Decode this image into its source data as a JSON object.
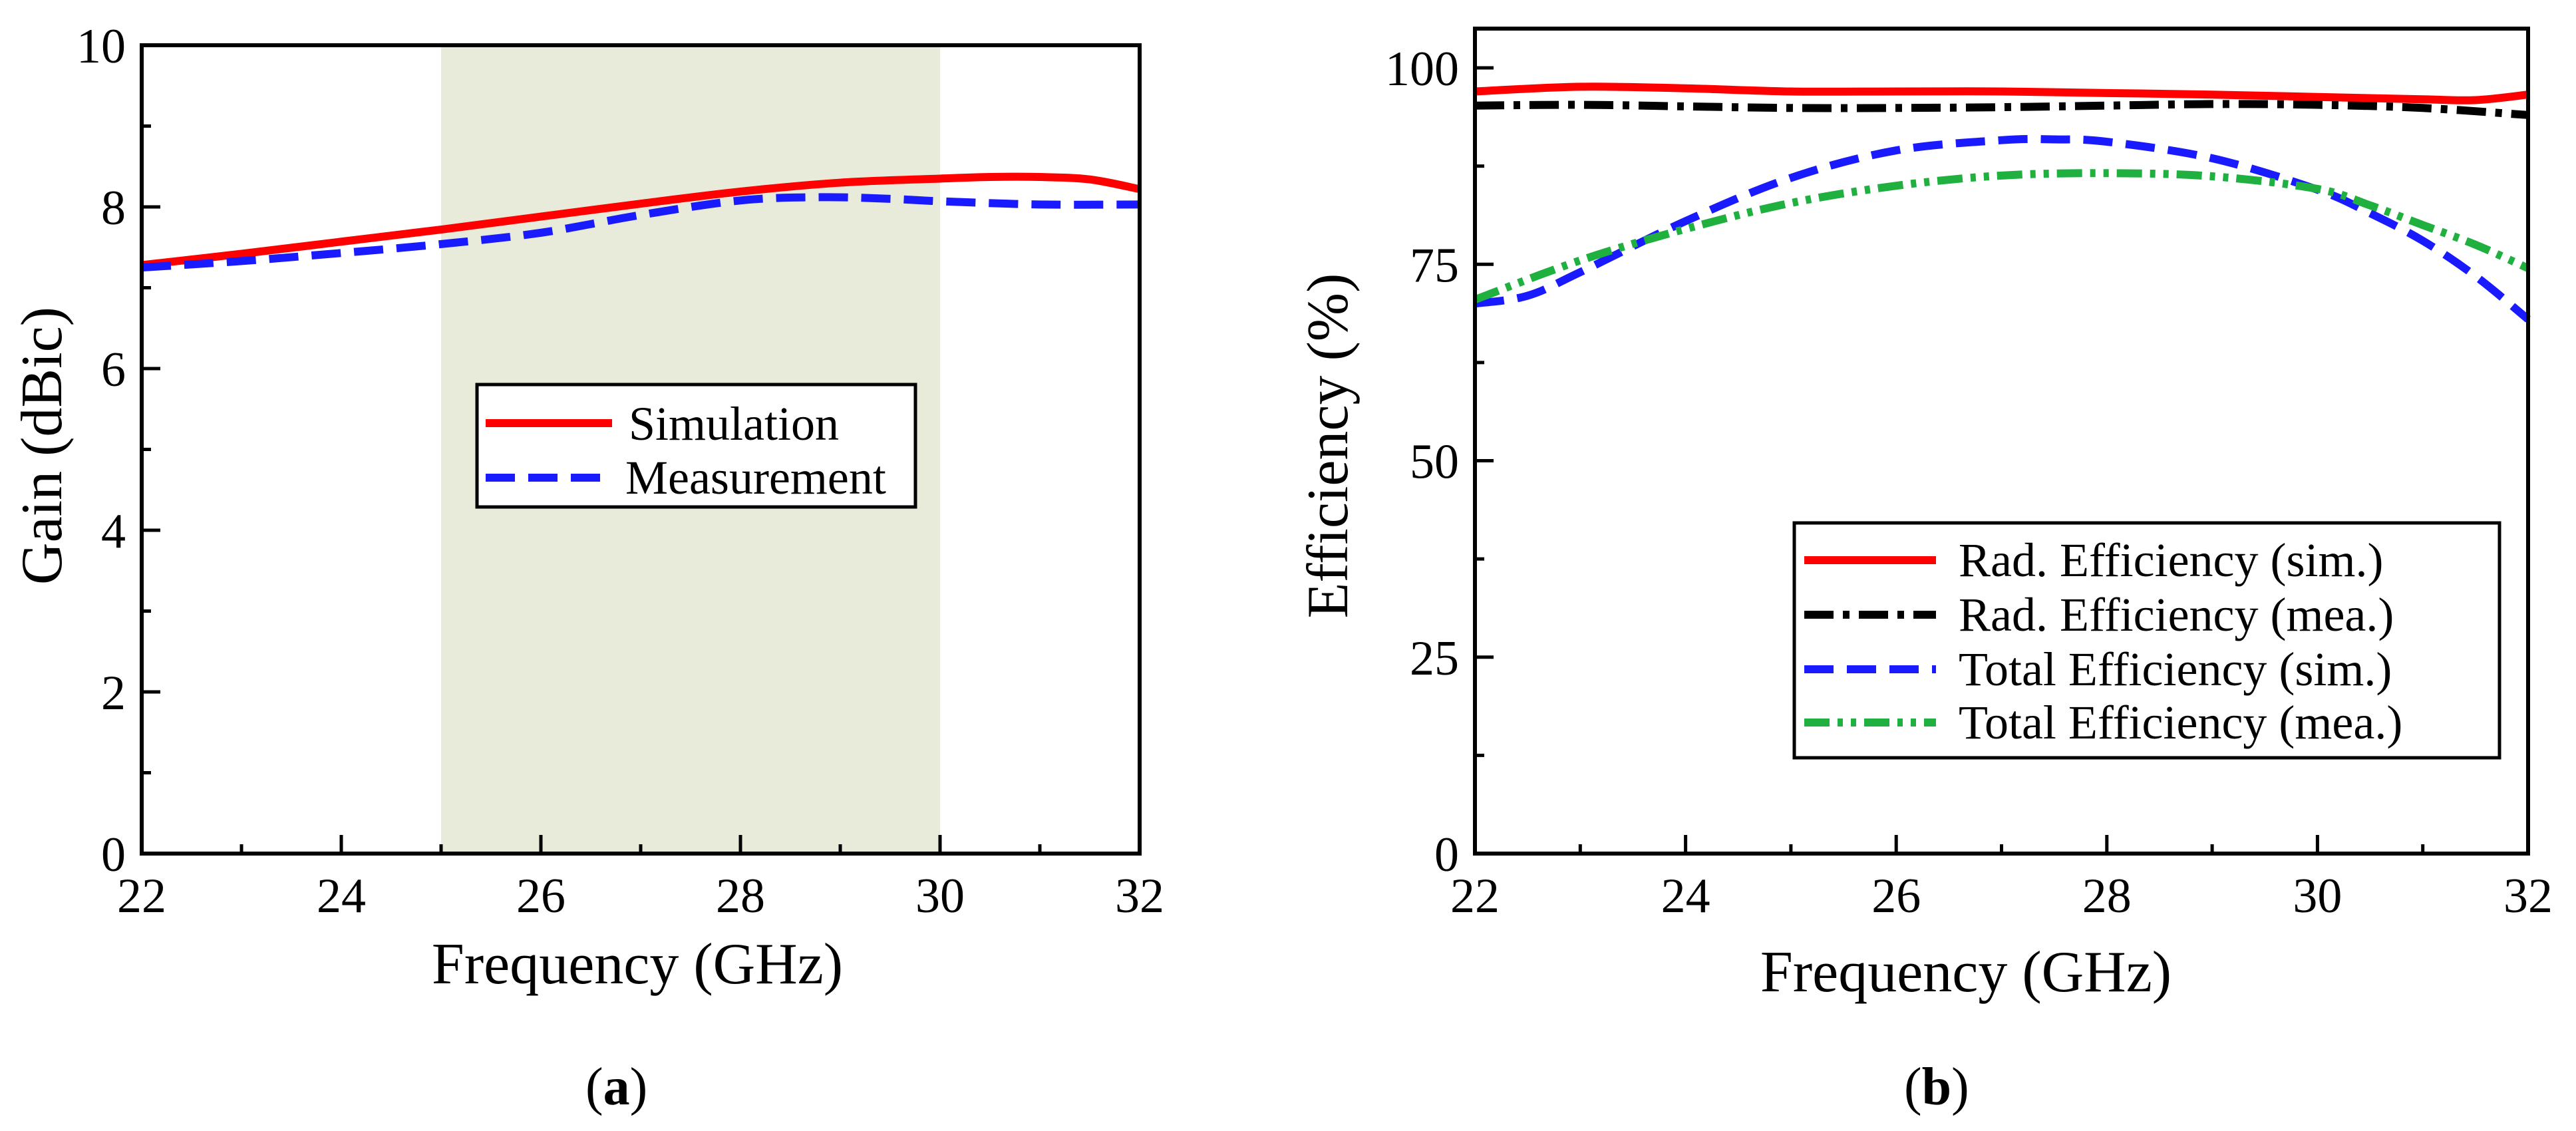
{
  "chart_data": [
    {
      "type": "line",
      "panel": "a",
      "caption_open": "(",
      "caption_letter": "a",
      "caption_close": ")",
      "xlabel": "Frequency (GHz)",
      "ylabel": "Gain (dBic)",
      "xlim": [
        22,
        32
      ],
      "ylim": [
        0,
        10
      ],
      "xticks": [
        22,
        24,
        26,
        28,
        30,
        32
      ],
      "yticks": [
        0,
        2,
        4,
        6,
        8,
        10
      ],
      "shaded_band": {
        "x_start": 25,
        "x_end": 30,
        "color": "#e8ebd9"
      },
      "legend_position": "center",
      "series": [
        {
          "name": "Simulation",
          "color": "#ff0000",
          "style": "solid",
          "x": [
            22,
            23,
            24,
            25,
            26,
            27,
            28,
            29,
            30,
            30.5,
            31,
            31.5,
            32
          ],
          "y": [
            7.28,
            7.42,
            7.57,
            7.72,
            7.88,
            8.04,
            8.19,
            8.3,
            8.35,
            8.37,
            8.37,
            8.34,
            8.22
          ]
        },
        {
          "name": "Measurement",
          "color": "#1a1aff",
          "style": "dashed",
          "x": [
            22,
            23,
            24,
            25,
            26,
            27,
            28,
            28.8,
            29.5,
            30,
            31,
            32
          ],
          "y": [
            7.25,
            7.33,
            7.43,
            7.54,
            7.68,
            7.9,
            8.08,
            8.12,
            8.1,
            8.07,
            8.03,
            8.03
          ]
        }
      ]
    },
    {
      "type": "line",
      "panel": "b",
      "caption_open": "(",
      "caption_letter": "b",
      "caption_close": ")",
      "xlabel": "Frequency (GHz)",
      "ylabel": "Efficiency (%)",
      "xlim": [
        22,
        32
      ],
      "ylim": [
        0,
        105
      ],
      "xticks": [
        22,
        24,
        26,
        28,
        30,
        32
      ],
      "yticks": [
        0,
        25,
        50,
        75,
        100
      ],
      "legend_position": "bottom-right",
      "series": [
        {
          "name": "Rad. Efficiency (sim.)",
          "color": "#ff0000",
          "style": "solid",
          "x": [
            22,
            23,
            24,
            25,
            26,
            27,
            28,
            29,
            30,
            31,
            31.5,
            32
          ],
          "y": [
            97.0,
            97.6,
            97.4,
            97.0,
            97.0,
            97.0,
            96.8,
            96.6,
            96.3,
            96.0,
            95.9,
            96.6
          ]
        },
        {
          "name": "Rad. Efficiency (mea.)",
          "color": "#000000",
          "style": "dashdot",
          "x": [
            22,
            23,
            24,
            25,
            26,
            27,
            28,
            29,
            30,
            31,
            32
          ],
          "y": [
            95.2,
            95.3,
            95.1,
            94.9,
            94.9,
            95.0,
            95.2,
            95.4,
            95.3,
            94.9,
            94.0
          ]
        },
        {
          "name": "Total Efficiency (sim.)",
          "color": "#1a1aff",
          "style": "dashed",
          "x": [
            22,
            22.5,
            23,
            24,
            25,
            26,
            27,
            27.5,
            28,
            29,
            30,
            30.5,
            31,
            31.5,
            32
          ],
          "y": [
            70.0,
            71.0,
            74.0,
            80.5,
            86.0,
            89.5,
            90.8,
            90.9,
            90.6,
            88.5,
            84.5,
            81.5,
            78.0,
            73.5,
            68.0
          ]
        },
        {
          "name": "Total Efficiency (mea.)",
          "color": "#20b040",
          "style": "dashdotdot",
          "x": [
            22,
            23,
            24,
            25,
            26,
            27,
            28,
            29,
            30,
            30.5,
            31,
            31.5,
            32
          ],
          "y": [
            70.5,
            75.5,
            79.5,
            82.8,
            85.0,
            86.3,
            86.6,
            86.2,
            84.6,
            82.5,
            80.0,
            77.5,
            74.5
          ]
        }
      ]
    }
  ]
}
